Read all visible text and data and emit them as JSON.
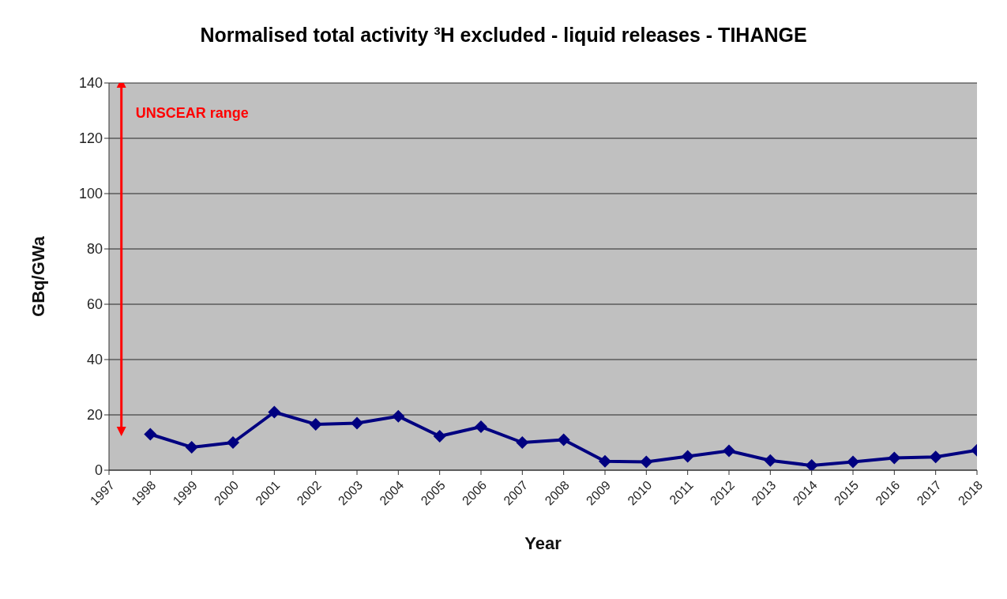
{
  "chart_data": {
    "type": "line",
    "title": "Normalised total activity ³H excluded - liquid releases - TIHANGE",
    "xlabel": "Year",
    "ylabel": "GBq/GWa",
    "x": [
      1998,
      1999,
      2000,
      2001,
      2002,
      2003,
      2004,
      2005,
      2006,
      2007,
      2008,
      2009,
      2010,
      2011,
      2012,
      2013,
      2014,
      2015,
      2016,
      2017,
      2018
    ],
    "series": [
      {
        "color": "#000080",
        "values": [
          13,
          8.3,
          10,
          21,
          16.6,
          17,
          19.5,
          12.3,
          15.7,
          10,
          11,
          3.2,
          3,
          5,
          7,
          3.5,
          1.7,
          3,
          4.4,
          4.8,
          7.2
        ]
      },
      {
        "type": "line",
        "name": "UNSCEAR range",
        "color": "#ff0000",
        "x": [
          1997.3,
          1997.3
        ],
        "values": [
          14,
          140
        ],
        "marker": "triangle"
      }
    ],
    "xlim": [
      1997,
      2018
    ],
    "xticks": [
      1997,
      1998,
      1999,
      2000,
      2001,
      2002,
      2003,
      2004,
      2005,
      2006,
      2007,
      2008,
      2009,
      2010,
      2011,
      2012,
      2013,
      2014,
      2015,
      2016,
      2017,
      2018
    ],
    "ylim": [
      0,
      140
    ],
    "yticks": [
      0,
      20,
      40,
      60,
      80,
      100,
      120,
      140
    ],
    "grid": "y",
    "marker": "diamond",
    "line_style": "solid",
    "legend": false
  }
}
